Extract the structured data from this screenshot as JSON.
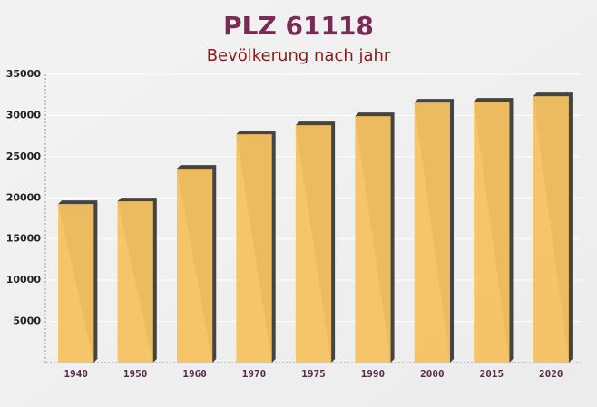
{
  "chart_data": {
    "type": "bar",
    "title": "PLZ 61118",
    "subtitle": "Bevölkerung nach jahr",
    "categories": [
      "1940",
      "1950",
      "1960",
      "1970",
      "1975",
      "1990",
      "2000",
      "2015",
      "2020"
    ],
    "values": [
      19250,
      19580,
      23540,
      27720,
      28820,
      29920,
      31570,
      31680,
      32340
    ],
    "color": "#f7c261",
    "ylim": [
      0,
      35000
    ],
    "yticks": [
      5000,
      10000,
      15000,
      20000,
      25000,
      30000,
      35000
    ],
    "grid": true
  }
}
